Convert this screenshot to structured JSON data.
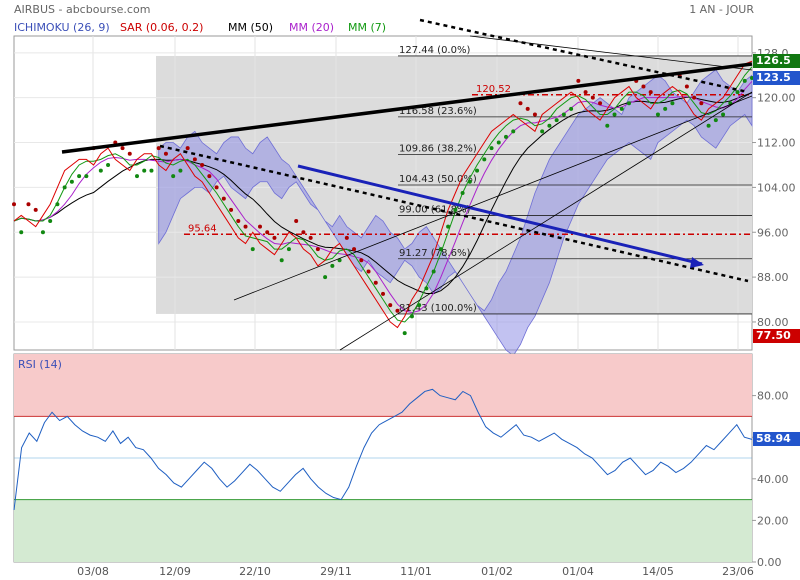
{
  "header": {
    "left": "AIRBUS - abcbourse.com",
    "right": "1 AN - JOUR"
  },
  "legend": [
    {
      "label": "ICHIMOKU (26, 9)",
      "color": "#3b4fb8"
    },
    {
      "label": "SAR (0.06, 0.2)",
      "color": "#cc0000"
    },
    {
      "label": "MM (50)",
      "color": "#000000"
    },
    {
      "label": "MM (20)",
      "color": "#aa22cc"
    },
    {
      "label": "MM (7)",
      "color": "#119911"
    }
  ],
  "price_tags": [
    {
      "label": "126.5",
      "value": 126.5,
      "color": "#117711"
    },
    {
      "label": "123.5",
      "value": 123.5,
      "color": "#2255cc"
    },
    {
      "label": "77.50",
      "value": 77.5,
      "color": "#cc0000"
    }
  ],
  "rsi_panel": {
    "title": "RSI (14)",
    "last_value_label": "58.94",
    "last_value": 58.94
  },
  "chart_data": [
    {
      "type": "line",
      "title": "AIRBUS",
      "xlabel": "",
      "ylabel": "",
      "ylim": [
        75,
        131
      ],
      "x_ticks": [
        "03/08",
        "12/09",
        "22/10",
        "29/11",
        "11/01",
        "01/02",
        "01/04",
        "14/05",
        "23/06"
      ],
      "y_ticks": [
        80,
        88,
        96,
        104,
        112,
        120,
        128
      ],
      "y_tick_labels": [
        "80.00",
        "88.00",
        "96.00",
        "104.00",
        "112.00",
        "120.00",
        "128.0"
      ],
      "series": [
        {
          "values": [
            98,
            99,
            98,
            97,
            99,
            101,
            104,
            107,
            108,
            109,
            109,
            108,
            110,
            111,
            109,
            108,
            107,
            109,
            110,
            110,
            108,
            107,
            109,
            110,
            108,
            106,
            105,
            103,
            101,
            99,
            97,
            95,
            94,
            96,
            94,
            93,
            92,
            94,
            96,
            95,
            93,
            92,
            90,
            91,
            93,
            94,
            92,
            90,
            88,
            86,
            84,
            82,
            80,
            79,
            81,
            84,
            86,
            89,
            92,
            96,
            100,
            103,
            106,
            108,
            110,
            112,
            114,
            115,
            116,
            117,
            116,
            115,
            114,
            117,
            118,
            119,
            120,
            121,
            120,
            118,
            117,
            116,
            118,
            120,
            121,
            122,
            120,
            119,
            118,
            120,
            121,
            122,
            121,
            119,
            117,
            116,
            118,
            119,
            120,
            122,
            124,
            126,
            126.5
          ]
        }
      ],
      "annotations": [
        {
          "label": "127.44  (0.0%)",
          "value": 127.44
        },
        {
          "label": "120.52",
          "value": 120.52
        },
        {
          "label": "116.58  (23.6%)",
          "value": 116.58
        },
        {
          "label": "109.86  (38.2%)",
          "value": 109.86
        },
        {
          "label": "104.43  (50.0%)",
          "value": 104.43
        },
        {
          "label": "99.00  (61.8%)",
          "value": 99.0
        },
        {
          "label": "95.64",
          "value": 95.64
        },
        {
          "label": "91.27  (78.6%)",
          "value": 91.27
        },
        {
          "label": "81.43  (100.0%)",
          "value": 81.43
        }
      ]
    },
    {
      "type": "line",
      "title": "RSI (14)",
      "xlabel": "",
      "ylabel": "",
      "ylim": [
        0,
        100
      ],
      "y_ticks": [
        0,
        20,
        40,
        60,
        80
      ],
      "y_tick_labels": [
        "0.00",
        "20.00",
        "40.00",
        "60.00",
        "80.00"
      ],
      "overbought": 70,
      "oversold": 30,
      "series": [
        {
          "values": [
            25,
            55,
            62,
            58,
            67,
            72,
            68,
            70,
            66,
            63,
            61,
            60,
            58,
            63,
            57,
            60,
            55,
            54,
            50,
            45,
            42,
            38,
            36,
            40,
            44,
            48,
            45,
            40,
            36,
            39,
            43,
            47,
            44,
            40,
            36,
            34,
            38,
            42,
            45,
            40,
            36,
            33,
            31,
            30,
            36,
            46,
            55,
            62,
            66,
            68,
            70,
            72,
            76,
            79,
            82,
            83,
            80,
            79,
            78,
            82,
            80,
            72,
            65,
            62,
            60,
            63,
            66,
            61,
            60,
            58,
            60,
            62,
            59,
            57,
            55,
            52,
            50,
            46,
            42,
            44,
            48,
            50,
            46,
            42,
            44,
            48,
            46,
            43,
            45,
            48,
            52,
            56,
            54,
            58,
            62,
            66,
            60,
            58.94
          ]
        }
      ]
    }
  ]
}
